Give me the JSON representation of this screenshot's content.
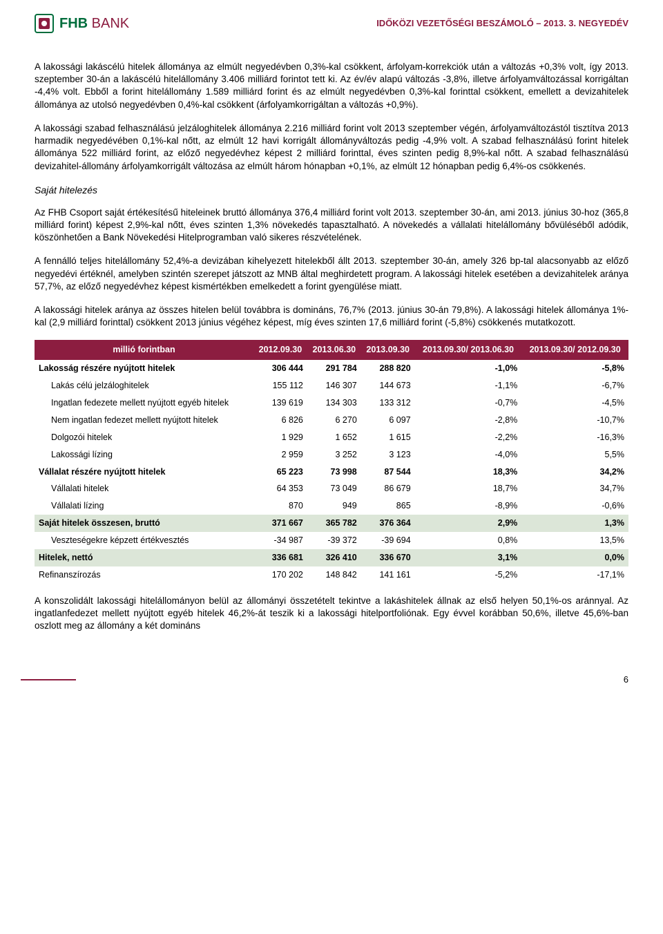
{
  "header": {
    "logo_text1": "FHB",
    "logo_text2": " BANK",
    "doc_title": "IDŐKÖZI VEZETŐSÉGI BESZÁMOLÓ – 2013. 3. NEGYEDÉV"
  },
  "paragraphs": {
    "p1": "A lakossági lakáscélú hitelek állománya az elmúlt negyedévben 0,3%-kal csökkent, árfolyam-korrekciók után a változás +0,3% volt, így 2013. szeptember 30-án a lakáscélú hitelállomány 3.406 milliárd forintot tett ki. Az év/év alapú változás -3,8%, illetve árfolyamváltozással korrigáltan -4,4% volt. Ebből a forint hitelállomány 1.589 milliárd forint és az elmúlt negyedévben 0,3%-kal forinttal csökkent, emellett a devizahitelek állománya az utolsó negyedévben 0,4%-kal csökkent (árfolyamkorrigáltan a változás +0,9%).",
    "p2": "A lakossági szabad felhasználású jelzáloghitelek állománya 2.216 milliárd forint volt 2013 szeptember végén, árfolyamváltozástól tisztítva 2013 harmadik negyedévében 0,1%-kal nőtt, az elmúlt 12 havi korrigált állományváltozás pedig -4,9% volt. A szabad felhasználású forint hitelek állománya 522 milliárd forint, az előző negyedévhez képest 2 milliárd forinttal, éves szinten pedig 8,9%-kal nőtt. A szabad felhasználású devizahitel-állomány árfolyamkorrigált változása az elmúlt három hónapban +0,1%, az elmúlt 12 hónapban pedig 6,4%-os csökkenés.",
    "section": "Saját hitelezés",
    "p3": "Az FHB Csoport saját értékesítésű hiteleinek bruttó állománya 376,4 milliárd forint volt 2013. szeptember 30-án, ami 2013. június 30-hoz (365,8 milliárd forint) képest 2,9%-kal nőtt, éves szinten 1,3% növekedés tapasztalható. A növekedés a vállalati hitelállomány bővüléséből adódik, köszönhetően a Bank Növekedési Hitelprogramban való sikeres részvételének.",
    "p4": "A fennálló teljes hitelállomány 52,4%-a devizában kihelyezett hitelekből állt 2013. szeptember 30-án, amely 326 bp-tal alacsonyabb az előző negyedévi értéknél, amelyben szintén szerepet játszott az MNB által meghirdetett program. A lakossági hitelek esetében a devizahitelek aránya 57,7%, az előző negyedévhez képest kismértékben emelkedett a forint gyengülése miatt.",
    "p5": "A lakossági hitelek aránya az összes hitelen belül továbbra is domináns, 76,7% (2013. június 30-án 79,8%). A lakossági hitelek állománya 1%-kal (2,9 milliárd forinttal) csökkent 2013 június végéhez képest, míg éves szinten 17,6 milliárd forint (-5,8%) csökkenés mutatkozott.",
    "p6": "A konszolidált lakossági hitelállományon belül az állományi összetételt tekintve a lakáshitelek állnak az első helyen 50,1%-os aránnyal. Az ingatlanfedezet mellett nyújtott egyéb hitelek 46,2%-át teszik ki a lakossági hitelportfoliónak. Egy évvel korábban 50,6%, illetve 45,6%-ban oszlott meg az állomány a két domináns"
  },
  "table": {
    "columns": [
      "millió forintban",
      "2012.09.30",
      "2013.06.30",
      "2013.09.30",
      "2013.09.30/ 2013.06.30",
      "2013.09.30/ 2012.09.30"
    ],
    "rows": [
      {
        "bold": true,
        "indent": false,
        "shaded": false,
        "cells": [
          "Lakosság részére nyújtott hitelek",
          "306 444",
          "291 784",
          "288 820",
          "-1,0%",
          "-5,8%"
        ]
      },
      {
        "bold": false,
        "indent": true,
        "shaded": false,
        "cells": [
          "Lakás célú jelzáloghitelek",
          "155 112",
          "146 307",
          "144 673",
          "-1,1%",
          "-6,7%"
        ]
      },
      {
        "bold": false,
        "indent": true,
        "shaded": false,
        "cells": [
          "Ingatlan fedezete mellett nyújtott egyéb hitelek",
          "139 619",
          "134 303",
          "133 312",
          "-0,7%",
          "-4,5%"
        ]
      },
      {
        "bold": false,
        "indent": true,
        "shaded": false,
        "cells": [
          "Nem ingatlan fedezet mellett nyújtott hitelek",
          "6 826",
          "6 270",
          "6 097",
          "-2,8%",
          "-10,7%"
        ]
      },
      {
        "bold": false,
        "indent": true,
        "shaded": false,
        "cells": [
          "Dolgozói hitelek",
          "1 929",
          "1 652",
          "1 615",
          "-2,2%",
          "-16,3%"
        ]
      },
      {
        "bold": false,
        "indent": true,
        "shaded": false,
        "cells": [
          "Lakossági lízing",
          "2 959",
          "3 252",
          "3 123",
          "-4,0%",
          "5,5%"
        ]
      },
      {
        "bold": true,
        "indent": false,
        "shaded": false,
        "cells": [
          "Vállalat részére nyújtott hitelek",
          "65 223",
          "73 998",
          "87 544",
          "18,3%",
          "34,2%"
        ]
      },
      {
        "bold": false,
        "indent": true,
        "shaded": false,
        "cells": [
          "Vállalati hitelek",
          "64 353",
          "73 049",
          "86 679",
          "18,7%",
          "34,7%"
        ]
      },
      {
        "bold": false,
        "indent": true,
        "shaded": false,
        "cells": [
          "Vállalati lízing",
          "870",
          "949",
          "865",
          "-8,9%",
          "-0,6%"
        ]
      },
      {
        "bold": true,
        "indent": false,
        "shaded": true,
        "cells": [
          "Saját hitelek összesen, bruttó",
          "371 667",
          "365 782",
          "376 364",
          "2,9%",
          "1,3%"
        ]
      },
      {
        "bold": false,
        "indent": true,
        "shaded": false,
        "cells": [
          "Veszteségekre képzett értékvesztés",
          "-34 987",
          "-39 372",
          "-39 694",
          "0,8%",
          "13,5%"
        ]
      },
      {
        "bold": true,
        "indent": false,
        "shaded": true,
        "cells": [
          "Hitelek, nettó",
          "336 681",
          "326 410",
          "336 670",
          "3,1%",
          "0,0%"
        ]
      },
      {
        "bold": false,
        "indent": false,
        "shaded": false,
        "cells": [
          "Refinanszírozás",
          "170 202",
          "148 842",
          "141 161",
          "-5,2%",
          "-17,1%"
        ]
      }
    ]
  },
  "page_number": "6",
  "colors": {
    "brand_green": "#006d3c",
    "brand_red": "#8c1d40",
    "table_header_bg": "#8c1d40",
    "shaded_row_bg": "#dce6d8"
  }
}
